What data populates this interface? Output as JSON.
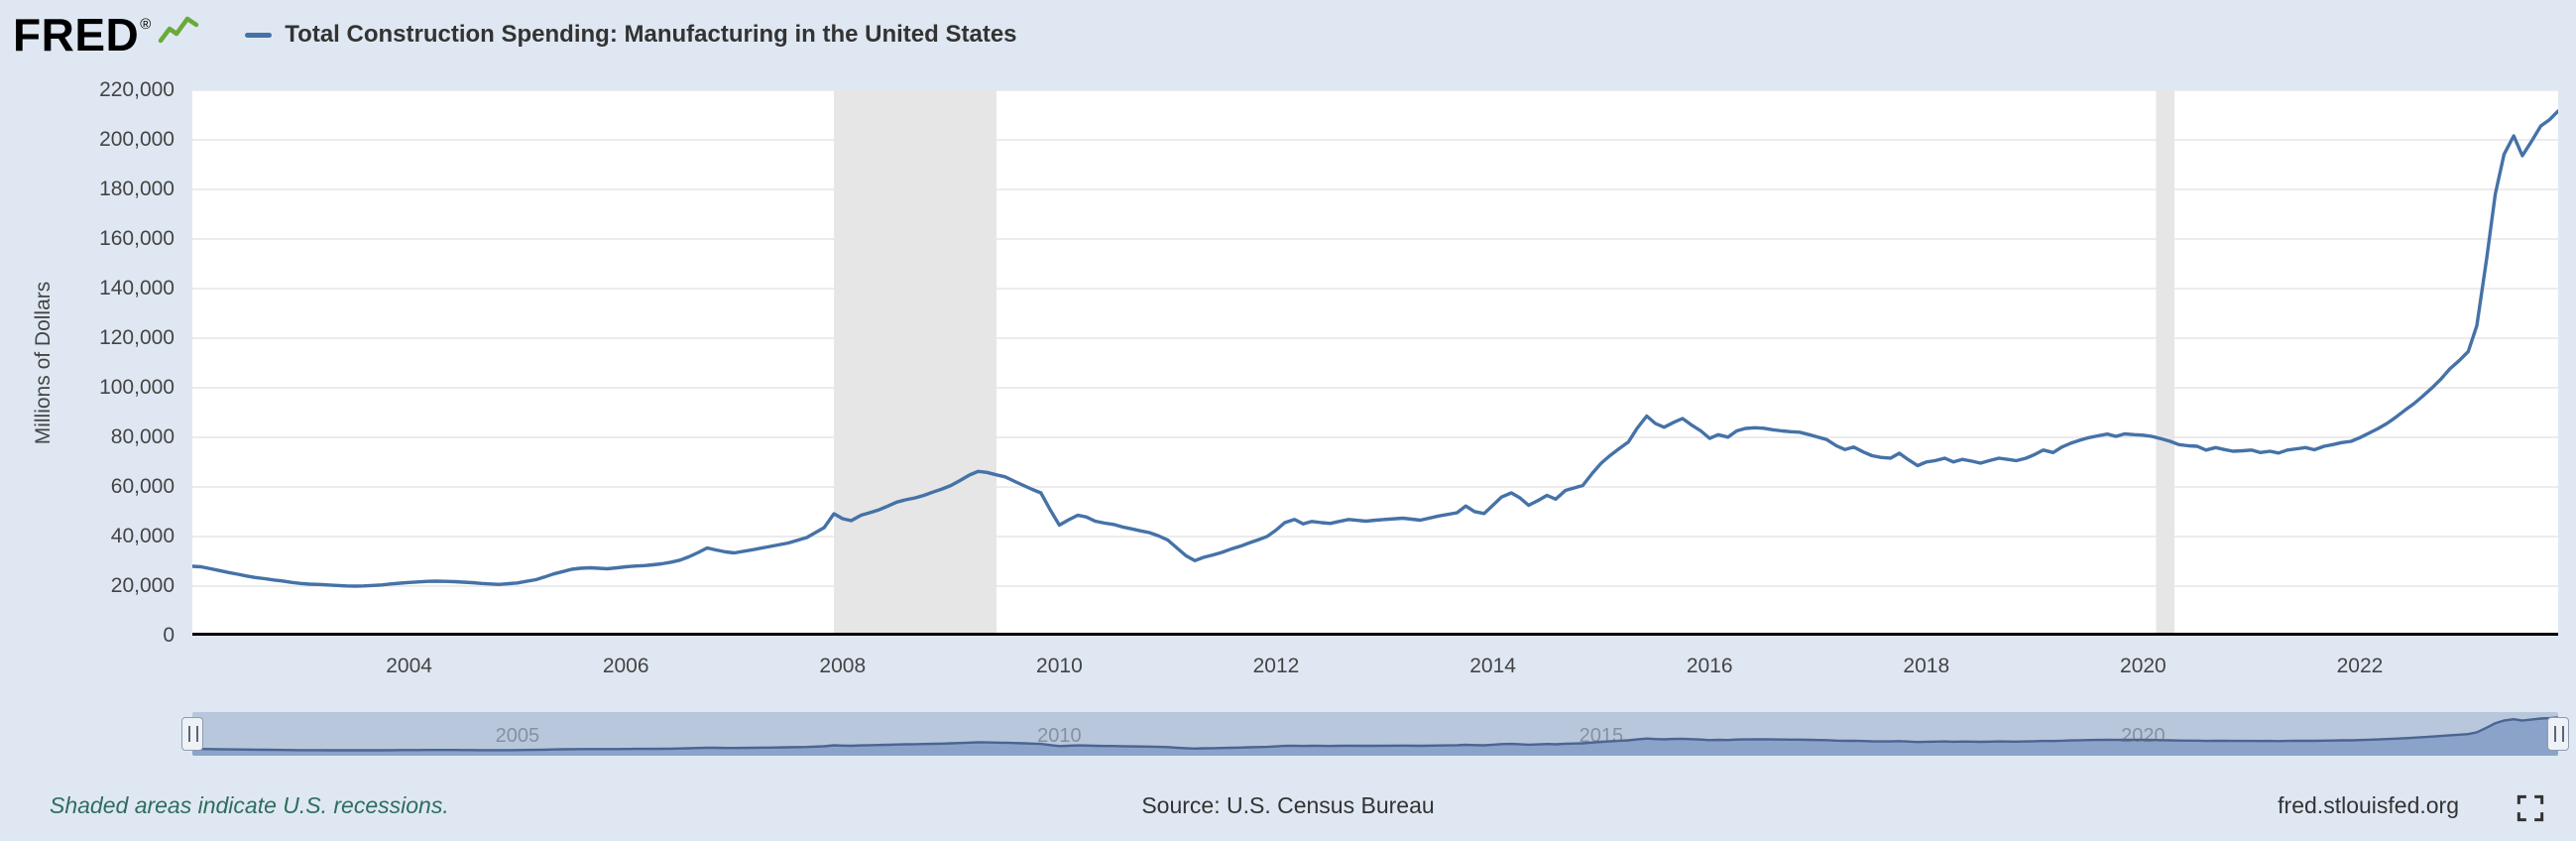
{
  "header": {
    "logo_text": "FRED",
    "registered_mark": "®",
    "legend_label": "Total Construction Spending: Manufacturing in the United States"
  },
  "chart_data": {
    "type": "line",
    "title": "Total Construction Spending: Manufacturing in the United States",
    "xlabel": "",
    "ylabel": "Millions of Dollars",
    "ylim": [
      0,
      220000
    ],
    "ytick_step": 20000,
    "xlim": [
      2002.0,
      2023.83
    ],
    "xticks": [
      2004,
      2006,
      2008,
      2010,
      2012,
      2014,
      2016,
      2018,
      2020,
      2022
    ],
    "grid": true,
    "legend_position": "top-left",
    "recession_bands": [
      [
        2007.92,
        2009.42
      ],
      [
        2020.12,
        2020.29
      ]
    ],
    "series": [
      {
        "name": "Total Construction Spending: Manufacturing in the United States",
        "units": "Millions of Dollars",
        "points": [
          [
            2002.0,
            28000
          ],
          [
            2002.08,
            27800
          ],
          [
            2002.17,
            27000
          ],
          [
            2002.25,
            26300
          ],
          [
            2002.33,
            25500
          ],
          [
            2002.42,
            24800
          ],
          [
            2002.5,
            24100
          ],
          [
            2002.58,
            23500
          ],
          [
            2002.67,
            23000
          ],
          [
            2002.75,
            22500
          ],
          [
            2002.83,
            22100
          ],
          [
            2002.92,
            21500
          ],
          [
            2003.0,
            21100
          ],
          [
            2003.08,
            20800
          ],
          [
            2003.17,
            20700
          ],
          [
            2003.25,
            20500
          ],
          [
            2003.33,
            20300
          ],
          [
            2003.42,
            20100
          ],
          [
            2003.5,
            20000
          ],
          [
            2003.58,
            20100
          ],
          [
            2003.67,
            20300
          ],
          [
            2003.75,
            20500
          ],
          [
            2003.83,
            20900
          ],
          [
            2003.92,
            21200
          ],
          [
            2004.0,
            21500
          ],
          [
            2004.08,
            21700
          ],
          [
            2004.17,
            21900
          ],
          [
            2004.25,
            22000
          ],
          [
            2004.33,
            21900
          ],
          [
            2004.42,
            21800
          ],
          [
            2004.5,
            21600
          ],
          [
            2004.58,
            21400
          ],
          [
            2004.67,
            21100
          ],
          [
            2004.75,
            20900
          ],
          [
            2004.83,
            20700
          ],
          [
            2004.92,
            21000
          ],
          [
            2005.0,
            21300
          ],
          [
            2005.08,
            21900
          ],
          [
            2005.17,
            22600
          ],
          [
            2005.25,
            23700
          ],
          [
            2005.33,
            24900
          ],
          [
            2005.42,
            25900
          ],
          [
            2005.5,
            26800
          ],
          [
            2005.58,
            27200
          ],
          [
            2005.67,
            27400
          ],
          [
            2005.75,
            27200
          ],
          [
            2005.83,
            27000
          ],
          [
            2005.92,
            27400
          ],
          [
            2006.0,
            27800
          ],
          [
            2006.08,
            28100
          ],
          [
            2006.17,
            28300
          ],
          [
            2006.25,
            28600
          ],
          [
            2006.33,
            29000
          ],
          [
            2006.42,
            29700
          ],
          [
            2006.5,
            30500
          ],
          [
            2006.58,
            31800
          ],
          [
            2006.67,
            33600
          ],
          [
            2006.75,
            35400
          ],
          [
            2006.83,
            34600
          ],
          [
            2006.92,
            33800
          ],
          [
            2007.0,
            33400
          ],
          [
            2007.17,
            34700
          ],
          [
            2007.33,
            36000
          ],
          [
            2007.5,
            37400
          ],
          [
            2007.67,
            39600
          ],
          [
            2007.83,
            43600
          ],
          [
            2007.92,
            49200
          ],
          [
            2008.0,
            47200
          ],
          [
            2008.08,
            46400
          ],
          [
            2008.17,
            48600
          ],
          [
            2008.25,
            49600
          ],
          [
            2008.33,
            50700
          ],
          [
            2008.42,
            52300
          ],
          [
            2008.5,
            53900
          ],
          [
            2008.58,
            54800
          ],
          [
            2008.67,
            55600
          ],
          [
            2008.75,
            56600
          ],
          [
            2008.83,
            57900
          ],
          [
            2008.92,
            59200
          ],
          [
            2009.0,
            60600
          ],
          [
            2009.08,
            62500
          ],
          [
            2009.17,
            64800
          ],
          [
            2009.25,
            66300
          ],
          [
            2009.33,
            65900
          ],
          [
            2009.42,
            64900
          ],
          [
            2009.5,
            64100
          ],
          [
            2009.58,
            62400
          ],
          [
            2009.67,
            60600
          ],
          [
            2009.75,
            59000
          ],
          [
            2009.83,
            57600
          ],
          [
            2009.92,
            50500
          ],
          [
            2010.0,
            44600
          ],
          [
            2010.08,
            46600
          ],
          [
            2010.17,
            48600
          ],
          [
            2010.25,
            47900
          ],
          [
            2010.33,
            46200
          ],
          [
            2010.42,
            45400
          ],
          [
            2010.5,
            44900
          ],
          [
            2010.58,
            43900
          ],
          [
            2010.67,
            43100
          ],
          [
            2010.75,
            42300
          ],
          [
            2010.83,
            41600
          ],
          [
            2010.92,
            40200
          ],
          [
            2011.0,
            38600
          ],
          [
            2011.08,
            35600
          ],
          [
            2011.17,
            32200
          ],
          [
            2011.25,
            30300
          ],
          [
            2011.33,
            31600
          ],
          [
            2011.42,
            32600
          ],
          [
            2011.5,
            33600
          ],
          [
            2011.58,
            34900
          ],
          [
            2011.67,
            36100
          ],
          [
            2011.75,
            37400
          ],
          [
            2011.83,
            38600
          ],
          [
            2011.92,
            40100
          ],
          [
            2012.0,
            42600
          ],
          [
            2012.08,
            45600
          ],
          [
            2012.17,
            46900
          ],
          [
            2012.25,
            45100
          ],
          [
            2012.33,
            46100
          ],
          [
            2012.42,
            45600
          ],
          [
            2012.5,
            45300
          ],
          [
            2012.58,
            46100
          ],
          [
            2012.67,
            46900
          ],
          [
            2012.75,
            46500
          ],
          [
            2012.83,
            46200
          ],
          [
            2012.92,
            46600
          ],
          [
            2013.0,
            46900
          ],
          [
            2013.17,
            47400
          ],
          [
            2013.33,
            46600
          ],
          [
            2013.5,
            48300
          ],
          [
            2013.67,
            49600
          ],
          [
            2013.75,
            52300
          ],
          [
            2013.83,
            50100
          ],
          [
            2013.92,
            49300
          ],
          [
            2014.0,
            52600
          ],
          [
            2014.08,
            55900
          ],
          [
            2014.17,
            57600
          ],
          [
            2014.25,
            55600
          ],
          [
            2014.33,
            52600
          ],
          [
            2014.42,
            54600
          ],
          [
            2014.5,
            56600
          ],
          [
            2014.58,
            55100
          ],
          [
            2014.67,
            58600
          ],
          [
            2014.75,
            59600
          ],
          [
            2014.83,
            60600
          ],
          [
            2014.92,
            65600
          ],
          [
            2015.0,
            69600
          ],
          [
            2015.08,
            72600
          ],
          [
            2015.17,
            75600
          ],
          [
            2015.25,
            78100
          ],
          [
            2015.33,
            83600
          ],
          [
            2015.42,
            88600
          ],
          [
            2015.5,
            85600
          ],
          [
            2015.58,
            84100
          ],
          [
            2015.67,
            86100
          ],
          [
            2015.75,
            87600
          ],
          [
            2015.83,
            85100
          ],
          [
            2015.92,
            82600
          ],
          [
            2016.0,
            79600
          ],
          [
            2016.08,
            81100
          ],
          [
            2016.17,
            80100
          ],
          [
            2016.25,
            82600
          ],
          [
            2016.33,
            83600
          ],
          [
            2016.42,
            83900
          ],
          [
            2016.5,
            83700
          ],
          [
            2016.58,
            83100
          ],
          [
            2016.67,
            82600
          ],
          [
            2016.75,
            82300
          ],
          [
            2016.83,
            82100
          ],
          [
            2016.92,
            81100
          ],
          [
            2017.0,
            80100
          ],
          [
            2017.08,
            79100
          ],
          [
            2017.17,
            76600
          ],
          [
            2017.25,
            75100
          ],
          [
            2017.33,
            76100
          ],
          [
            2017.42,
            74100
          ],
          [
            2017.5,
            72600
          ],
          [
            2017.58,
            71900
          ],
          [
            2017.67,
            71600
          ],
          [
            2017.75,
            73600
          ],
          [
            2017.83,
            71100
          ],
          [
            2017.92,
            68600
          ],
          [
            2018.0,
            70100
          ],
          [
            2018.08,
            70600
          ],
          [
            2018.17,
            71600
          ],
          [
            2018.25,
            70100
          ],
          [
            2018.33,
            71100
          ],
          [
            2018.42,
            70400
          ],
          [
            2018.5,
            69600
          ],
          [
            2018.58,
            70600
          ],
          [
            2018.67,
            71600
          ],
          [
            2018.75,
            71100
          ],
          [
            2018.83,
            70600
          ],
          [
            2018.92,
            71600
          ],
          [
            2019.0,
            73100
          ],
          [
            2019.08,
            74900
          ],
          [
            2019.17,
            73900
          ],
          [
            2019.25,
            76100
          ],
          [
            2019.33,
            77600
          ],
          [
            2019.42,
            78900
          ],
          [
            2019.5,
            79900
          ],
          [
            2019.58,
            80600
          ],
          [
            2019.67,
            81300
          ],
          [
            2019.75,
            80400
          ],
          [
            2019.83,
            81400
          ],
          [
            2019.92,
            81100
          ],
          [
            2020.0,
            80900
          ],
          [
            2020.08,
            80400
          ],
          [
            2020.17,
            79400
          ],
          [
            2020.25,
            78400
          ],
          [
            2020.33,
            77100
          ],
          [
            2020.42,
            76600
          ],
          [
            2020.5,
            76400
          ],
          [
            2020.58,
            74900
          ],
          [
            2020.67,
            75900
          ],
          [
            2020.75,
            75100
          ],
          [
            2020.83,
            74400
          ],
          [
            2020.92,
            74600
          ],
          [
            2021.0,
            74900
          ],
          [
            2021.08,
            73900
          ],
          [
            2021.17,
            74400
          ],
          [
            2021.25,
            73700
          ],
          [
            2021.33,
            74900
          ],
          [
            2021.42,
            75400
          ],
          [
            2021.5,
            75900
          ],
          [
            2021.58,
            75000
          ],
          [
            2021.67,
            76400
          ],
          [
            2021.75,
            77100
          ],
          [
            2021.83,
            77900
          ],
          [
            2021.92,
            78400
          ],
          [
            2022.0,
            79900
          ],
          [
            2022.08,
            81600
          ],
          [
            2022.17,
            83600
          ],
          [
            2022.25,
            85600
          ],
          [
            2022.33,
            88100
          ],
          [
            2022.42,
            91100
          ],
          [
            2022.5,
            93600
          ],
          [
            2022.58,
            96600
          ],
          [
            2022.67,
            100100
          ],
          [
            2022.75,
            103600
          ],
          [
            2022.83,
            107600
          ],
          [
            2022.92,
            111100
          ],
          [
            2023.0,
            114600
          ],
          [
            2023.08,
            125100
          ],
          [
            2023.17,
            152100
          ],
          [
            2023.25,
            178100
          ],
          [
            2023.33,
            194100
          ],
          [
            2023.42,
            201600
          ],
          [
            2023.5,
            193600
          ],
          [
            2023.58,
            199100
          ],
          [
            2023.67,
            205600
          ],
          [
            2023.75,
            208100
          ],
          [
            2023.83,
            211600
          ]
        ]
      }
    ]
  },
  "navigator": {
    "tick_years": [
      2005,
      2010,
      2015,
      2020
    ]
  },
  "footer": {
    "recession_note": "Shaded areas indicate U.S. recessions.",
    "source": "Source: U.S. Census Bureau",
    "site": "fred.stlouisfed.org"
  },
  "colors": {
    "page_background": "#dfe8f2",
    "plot_background": "#ffffff",
    "series_line": "#4572a7",
    "recession_shading": "#e6e6e6",
    "gridline": "#e6e6e6",
    "axis_line": "#000000",
    "tick_text": "#444444",
    "recession_note_text": "#2e6d5f",
    "navigator_track": "#b9c7dd",
    "navigator_fill": "#8ba3c9",
    "navigator_line": "#4a6591",
    "logo_green": "#69aa3b"
  }
}
